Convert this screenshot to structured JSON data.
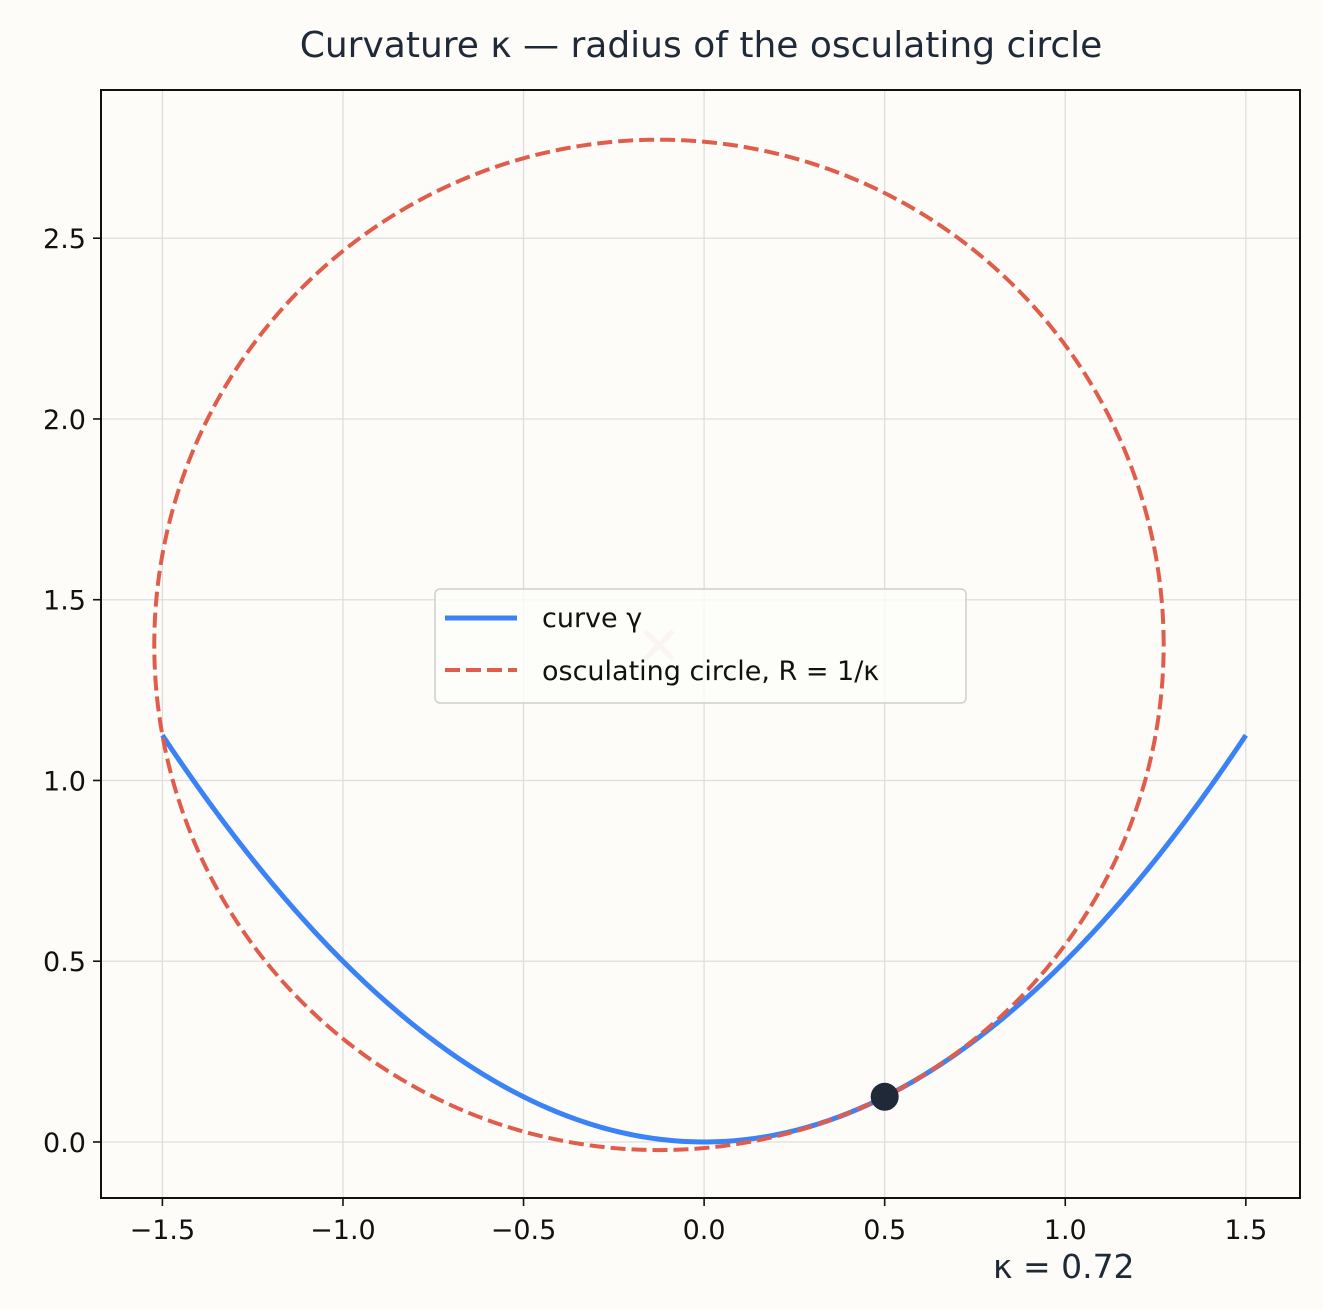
{
  "chart_data": {
    "type": "line",
    "title": "Curvature κ — radius of the osculating circle",
    "xlabel": "",
    "ylabel": "",
    "xlim": [
      -1.67,
      1.65
    ],
    "ylim": [
      -0.155,
      2.91
    ],
    "x_ticks": [
      -1.5,
      -1.0,
      -0.5,
      0.0,
      0.5,
      1.0,
      1.5
    ],
    "x_tick_labels": [
      "−1.5",
      "−1.0",
      "−0.5",
      "0.0",
      "0.5",
      "1.0",
      "1.5"
    ],
    "y_ticks": [
      0.0,
      0.5,
      1.0,
      1.5,
      2.0,
      2.5
    ],
    "y_tick_labels": [
      "0.0",
      "0.5",
      "1.0",
      "1.5",
      "2.0",
      "2.5"
    ],
    "grid": true,
    "legend_position": "center",
    "series": [
      {
        "name": "curve γ",
        "style": "solid",
        "color": "#3b82f6",
        "function": "y = x^2 / 2",
        "x": [
          -1.5,
          -1.25,
          -1.0,
          -0.75,
          -0.5,
          -0.25,
          0.0,
          0.25,
          0.5,
          0.75,
          1.0,
          1.25,
          1.5
        ],
        "y": [
          1.125,
          0.781,
          0.5,
          0.281,
          0.125,
          0.031,
          0.0,
          0.031,
          0.125,
          0.281,
          0.5,
          0.781,
          1.125
        ]
      },
      {
        "name": "osculating circle, R = 1/κ",
        "style": "dashed",
        "color": "#e05d4b",
        "center": [
          -0.125,
          1.375
        ],
        "radius": 1.3975
      }
    ],
    "point": {
      "x": 0.5,
      "y": 0.125,
      "color": "#1f2937"
    },
    "center_marker": {
      "x": -0.125,
      "y": 1.375,
      "marker": "x",
      "color": "#f6d6cf"
    },
    "annotation": "κ = 0.72"
  },
  "legend": [
    {
      "label": "curve γ",
      "color": "#3b82f6",
      "style": "solid"
    },
    {
      "label": "osculating circle, R = 1/κ",
      "color": "#e05d4b",
      "style": "dashed"
    }
  ],
  "colors": {
    "background": "#fdfcf9",
    "axes": "#111111",
    "grid": "#dedede"
  }
}
